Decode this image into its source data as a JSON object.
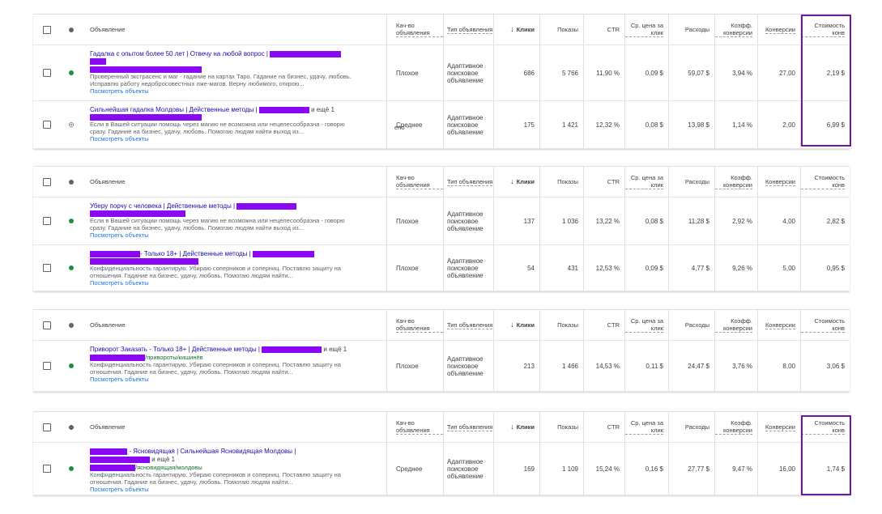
{
  "header": {
    "ad": "Объявление",
    "quality": "Кач-во объявления",
    "type": "Тип объявления",
    "clicks": "Клики",
    "clicks_sort_icon": "arrow-down-icon",
    "impressions": "Показы",
    "ctr": "CTR",
    "cpc": "Ср. цена за клик",
    "cost": "Расходы",
    "conv_rate": "Коэфф. конверсии",
    "conversions": "Конверсии",
    "cpa": "Стоимость конв"
  },
  "common": {
    "view_assets": "Посмотреть объекты",
    "ad_type": "Адаптивное поисковое объявление"
  },
  "tables": [
    {
      "rows": [
        {
          "title_a": "Гадалка с опытом более 50 лет | Отвечу на любой вопрос |",
          "desc": "Проверенный экстрасенс и маг - гадание на картах Таро. Гадание на бизнес, удачу, любовь. Исправлю работу недобросовестных лже-магов. Верну любимого, открою...",
          "quality": "Плохое",
          "clicks": "686",
          "impressions": "5 766",
          "ctr": "11,90 %",
          "cpc": "0,09 $",
          "cost": "59,07 $",
          "conv_rate": "3,94 %",
          "conversions": "27,00",
          "cpa": "2,19 $"
        },
        {
          "title_a": "Сильнейшая гадалка Молдовы | Действенные методы |",
          "title_b": "и ещё 1",
          "desc": "Если в Вашей ситуации помощь через магию не возможна или нецелесообразна - говорю сразу. Гадание на бизнес, удачу, любовь. Помогаю людям найти выход из...",
          "spill": "ено",
          "quality": "Среднее",
          "clicks": "175",
          "impressions": "1 421",
          "ctr": "12,32 %",
          "cpc": "0,08 $",
          "cost": "13,98 $",
          "conv_rate": "1,14 %",
          "conversions": "2,00",
          "cpa": "6,99 $"
        }
      ]
    },
    {
      "rows": [
        {
          "title_a": "Уберу порчу с человека | Действенные методы |",
          "desc": "Если в Вашей ситуации помощь через магию не возможна или нецелесообразна - говорю сразу. Гадание на бизнес, удачу, любовь. Помогаю людям найти выход из...",
          "quality": "Плохое",
          "clicks": "137",
          "impressions": "1 036",
          "ctr": "13,22 %",
          "cpc": "0,08 $",
          "cost": "11,28 $",
          "conv_rate": "2,92 %",
          "conversions": "4,00",
          "cpa": "2,82 $"
        },
        {
          "title_a": "- Только 18+ | Действенные методы |",
          "desc": "Конфиденциальность гарантирую. Убираю соперников и соперниц. Поставлю защиту на отношения. Гадание на бизнес, удачу, любовь. Помогаю людям найти...",
          "quality": "Плохое",
          "clicks": "54",
          "impressions": "431",
          "ctr": "12,53 %",
          "cpc": "0,09 $",
          "cost": "4,77 $",
          "conv_rate": "9,26 %",
          "conversions": "5,00",
          "cpa": "0,95 $"
        }
      ]
    },
    {
      "rows": [
        {
          "title_a": "Приворот Заказать - Только 18+ | Действенные методы |",
          "title_b": "и ещё 1",
          "url": "/привороты/кишинёв",
          "desc": "Конфиденциальность гарантирую. Убираю соперников и соперниц. Поставлю защиту на отношения. Гадание на бизнес, удачу, любовь. Помогаю людям найти...",
          "quality": "Плохое",
          "clicks": "213",
          "impressions": "1 466",
          "ctr": "14,53 %",
          "cpc": "0,11 $",
          "cost": "24,47 $",
          "conv_rate": "3,76 %",
          "conversions": "8,00",
          "cpa": "3,06 $"
        }
      ]
    },
    {
      "rows": [
        {
          "title_a": "- Ясновидящая | Сильнейшая Ясновидящая Молдовы |",
          "title_b": "и ещё 1",
          "url": "/ясновидящая/молдовы",
          "desc": "Конфиденциальность гарантирую. Убираю соперников и соперниц. Поставлю защиту на отношения. Гадание на бизнес, удачу, любовь. Помогаю людям найти...",
          "quality": "Среднее",
          "clicks": "169",
          "impressions": "1 109",
          "ctr": "15,24 %",
          "cpc": "0,16 $",
          "cost": "27,77 $",
          "conv_rate": "9,47 %",
          "conversions": "16,00",
          "cpa": "1,74 $"
        }
      ]
    }
  ],
  "colors": {
    "redaction": "#8a08f2",
    "highlight": "#6a1b9a",
    "status_enabled": "#1e8e3e"
  }
}
